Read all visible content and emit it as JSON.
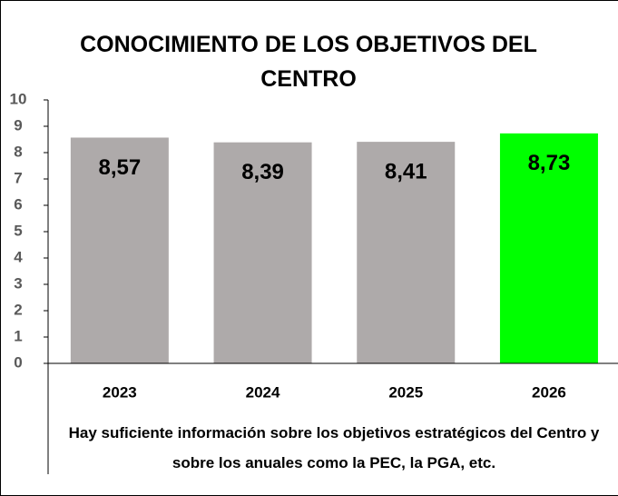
{
  "chart_data": {
    "type": "bar",
    "title": "CONOCIMIENTO DE LOS OBJETIVOS DEL CENTRO",
    "x_label": "Hay suficiente información sobre los objetivos estratégicos del Centro y sobre los anuales como la PEC, la PGA, etc.",
    "categories": [
      "2023",
      "2024",
      "2025",
      "2026"
    ],
    "values": [
      8.57,
      8.39,
      8.41,
      8.73
    ],
    "value_labels": [
      "8,57",
      "8,39",
      "8,41",
      "8,73"
    ],
    "colors": [
      "#aeaaaa",
      "#aeaaaa",
      "#aeaaaa",
      "#00ff00"
    ],
    "ylim": [
      0,
      10
    ],
    "yticks": [
      0,
      1,
      2,
      3,
      4,
      5,
      6,
      7,
      8,
      9,
      10
    ],
    "grid": false
  }
}
